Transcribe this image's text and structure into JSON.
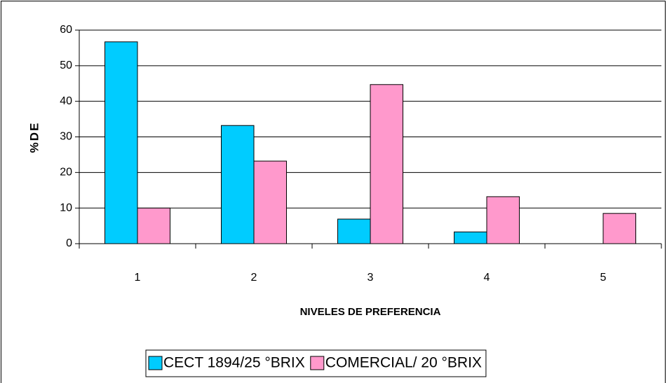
{
  "chart_data": {
    "type": "bar",
    "categories": [
      "1",
      "2",
      "3",
      "4",
      "5"
    ],
    "series": [
      {
        "name": "CECT 1894/25 °BRIX",
        "color": "#00ccff",
        "values": [
          56.7,
          33.2,
          6.9,
          3.3,
          0
        ]
      },
      {
        "name": "COMERCIAL/ 20 °BRIX",
        "color": "#ff99cc",
        "values": [
          10.0,
          23.2,
          44.7,
          13.2,
          8.5
        ]
      }
    ],
    "x_label": "NIVELES DE PREFERENCIA",
    "y_label": "%DE",
    "ylim": [
      0,
      60
    ],
    "yticks": [
      0,
      10,
      20,
      30,
      40,
      50,
      60
    ],
    "grid": true,
    "legend": "bottom"
  }
}
